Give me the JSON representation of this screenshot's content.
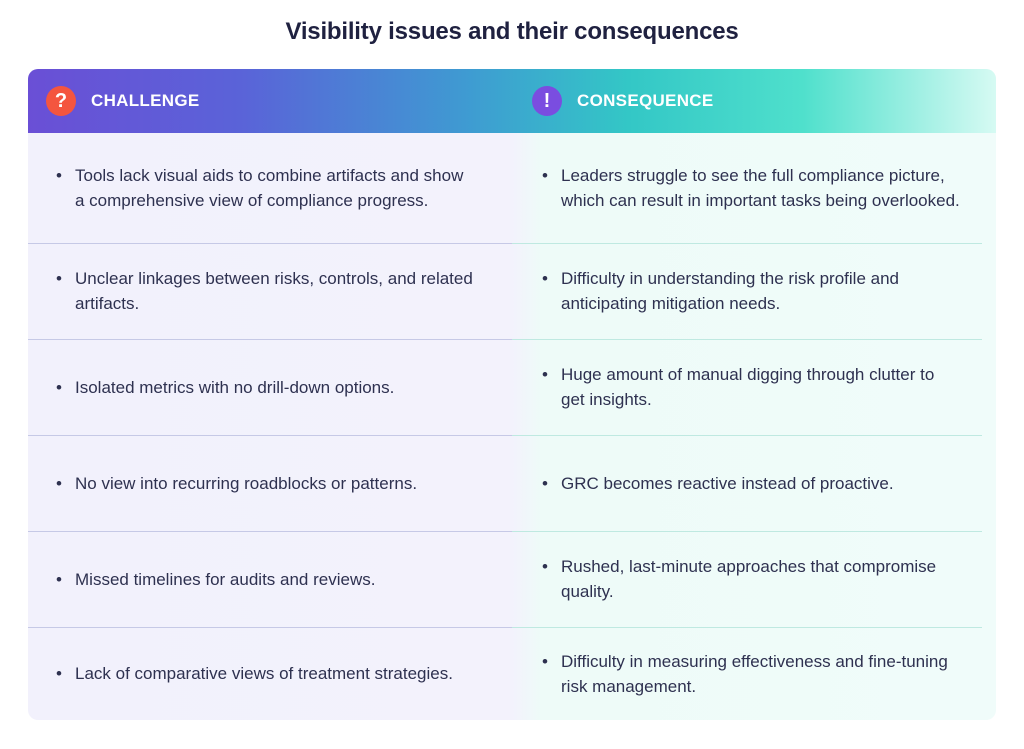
{
  "title": "Visibility issues and their consequences",
  "header": {
    "challenge_label": "CHALLENGE",
    "consequence_label": "CONSEQUENCE",
    "challenge_icon": "question-icon",
    "consequence_icon": "exclamation-icon",
    "challenge_glyph": "?",
    "consequence_glyph": "!"
  },
  "colors": {
    "header_gradient_start": "#6a4fd6",
    "header_gradient_end": "#4fe0cc",
    "challenge_badge": "#f4553f",
    "consequence_badge": "#7a4de0",
    "text": "#2e3150"
  },
  "rows": [
    {
      "challenge": "Tools lack visual aids to combine artifacts and show a comprehensive view of compliance progress.",
      "consequence": "Leaders struggle to see the full compliance picture, which can result in important tasks being overlooked."
    },
    {
      "challenge": "Unclear linkages between risks, controls, and related artifacts.",
      "consequence": "Difficulty in understanding the risk profile and anticipating mitigation needs."
    },
    {
      "challenge": "Isolated metrics with no drill-down options.",
      "consequence": "Huge amount of manual digging through clutter to get insights."
    },
    {
      "challenge": "No view into recurring roadblocks or patterns.",
      "consequence": "GRC becomes reactive instead of proactive."
    },
    {
      "challenge": "Missed timelines for audits and reviews.",
      "consequence": "Rushed, last-minute approaches that compromise quality."
    },
    {
      "challenge": "Lack of comparative views of treatment strategies.",
      "consequence": "Difficulty in measuring effectiveness and fine-tuning risk management."
    }
  ],
  "bullet_char": "•"
}
